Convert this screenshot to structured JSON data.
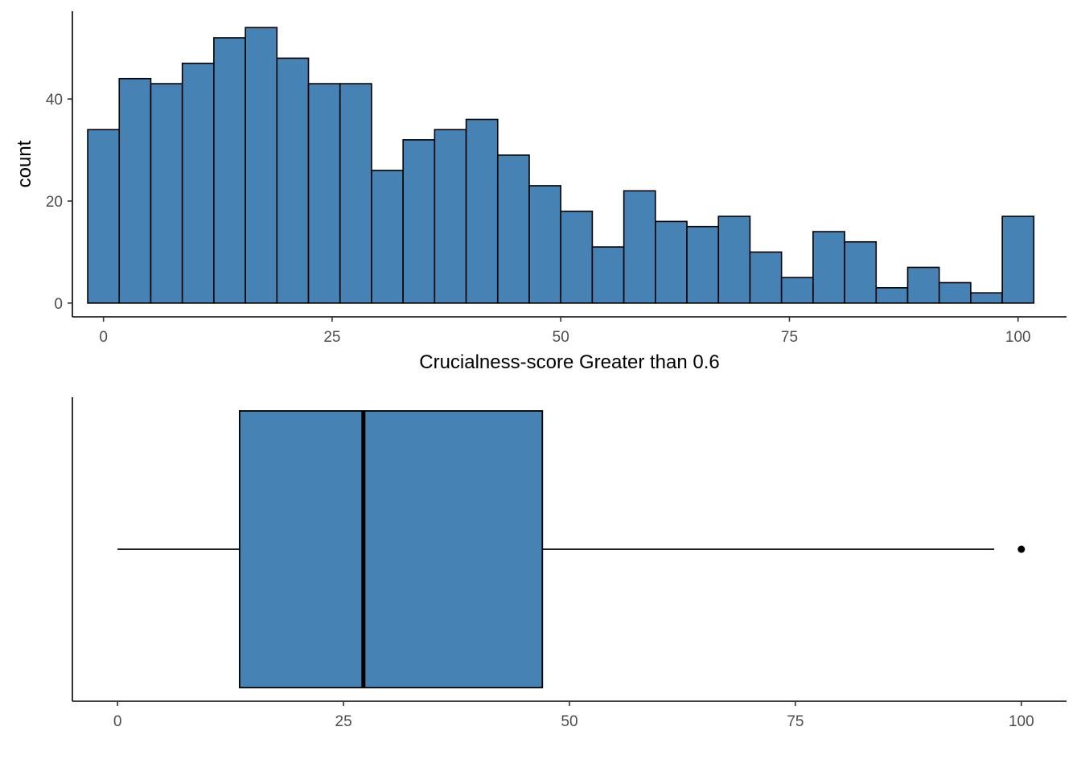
{
  "chart_data": [
    {
      "type": "bar",
      "subtype": "histogram",
      "xlabel": "Crucialness-score Greater than 0.6",
      "ylabel": "count",
      "bin_width": 3.448,
      "bin_centers": [
        0,
        3.448,
        6.897,
        10.345,
        13.793,
        17.241,
        20.69,
        24.138,
        27.586,
        31.034,
        34.483,
        37.931,
        41.379,
        44.828,
        48.276,
        51.724,
        55.172,
        58.621,
        62.069,
        65.517,
        68.966,
        72.414,
        75.862,
        79.31,
        82.759,
        86.207,
        89.655,
        93.103,
        96.552,
        100
      ],
      "values": [
        34,
        44,
        43,
        47,
        52,
        54,
        48,
        43,
        43,
        26,
        32,
        34,
        36,
        29,
        23,
        18,
        11,
        22,
        16,
        15,
        17,
        10,
        5,
        14,
        12,
        3,
        7,
        4,
        2,
        17
      ],
      "xlim": [
        -3.4,
        105.3
      ],
      "ylim": [
        -2.7,
        57.2
      ],
      "x_ticks": [
        "0",
        "25",
        "50",
        "75",
        "100"
      ],
      "y_ticks": [
        "0",
        "20",
        "40"
      ],
      "fill_color": "#4682B4",
      "edge_color": "#000000",
      "grid": false,
      "legend": "none"
    },
    {
      "type": "boxplot",
      "orientation": "horizontal",
      "whisker_low": 0,
      "q1": 13.5,
      "median": 27.2,
      "q3": 47.0,
      "whisker_high": 97,
      "outliers": [
        100
      ],
      "xlim": [
        -5,
        105
      ],
      "x_ticks": [
        "0",
        "25",
        "50",
        "75",
        "100"
      ],
      "fill_color": "#4682B4",
      "edge_color": "#000000",
      "grid": false,
      "legend": "none"
    }
  ]
}
